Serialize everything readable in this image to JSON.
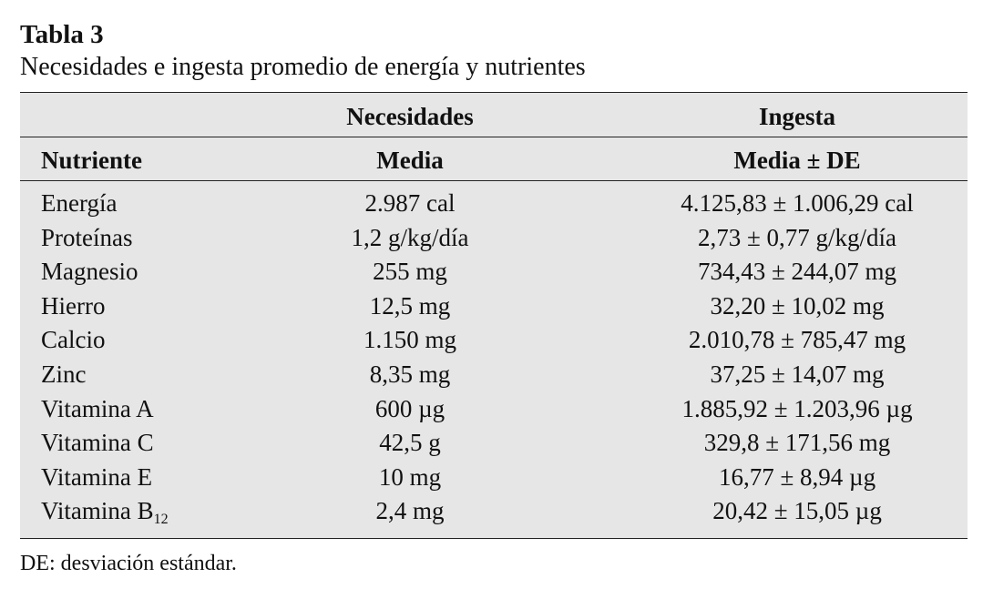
{
  "header": {
    "title": "Tabla 3",
    "subtitle": "Necesidades e ingesta promedio de energía y nutrientes"
  },
  "table": {
    "group_headers": [
      "Necesidades",
      "Ingesta"
    ],
    "column_headers": [
      "Nutriente",
      "Media",
      "Media ± DE"
    ],
    "rows": [
      {
        "nutriente": "Energía",
        "necesidades": "2.987 cal",
        "ingesta": "4.125,83 ± 1.006,29 cal"
      },
      {
        "nutriente": "Proteínas",
        "necesidades": "1,2 g/kg/día",
        "ingesta": "2,73 ± 0,77 g/kg/día"
      },
      {
        "nutriente": "Magnesio",
        "necesidades": "255 mg",
        "ingesta": "734,43 ± 244,07 mg"
      },
      {
        "nutriente": "Hierro",
        "necesidades": "12,5 mg",
        "ingesta": "32,20 ± 10,02 mg"
      },
      {
        "nutriente": "Calcio",
        "necesidades": "1.150 mg",
        "ingesta": "2.010,78 ± 785,47 mg"
      },
      {
        "nutriente": "Zinc",
        "necesidades": "8,35 mg",
        "ingesta": "37,25 ± 14,07 mg"
      },
      {
        "nutriente": "Vitamina A",
        "necesidades": "600 µg",
        "ingesta": "1.885,92 ± 1.203,96 µg"
      },
      {
        "nutriente": "Vitamina C",
        "necesidades": "42,5 g",
        "ingesta": "329,8 ± 171,56 mg"
      },
      {
        "nutriente": "Vitamina E",
        "necesidades": "10 mg",
        "ingesta": "16,77 ± 8,94 µg"
      },
      {
        "nutriente": "Vitamina B",
        "subindice": "12",
        "necesidades": "2,4 mg",
        "ingesta": "20,42 ± 15,05 µg"
      }
    ]
  },
  "footnote": "DE: desviación estándar."
}
